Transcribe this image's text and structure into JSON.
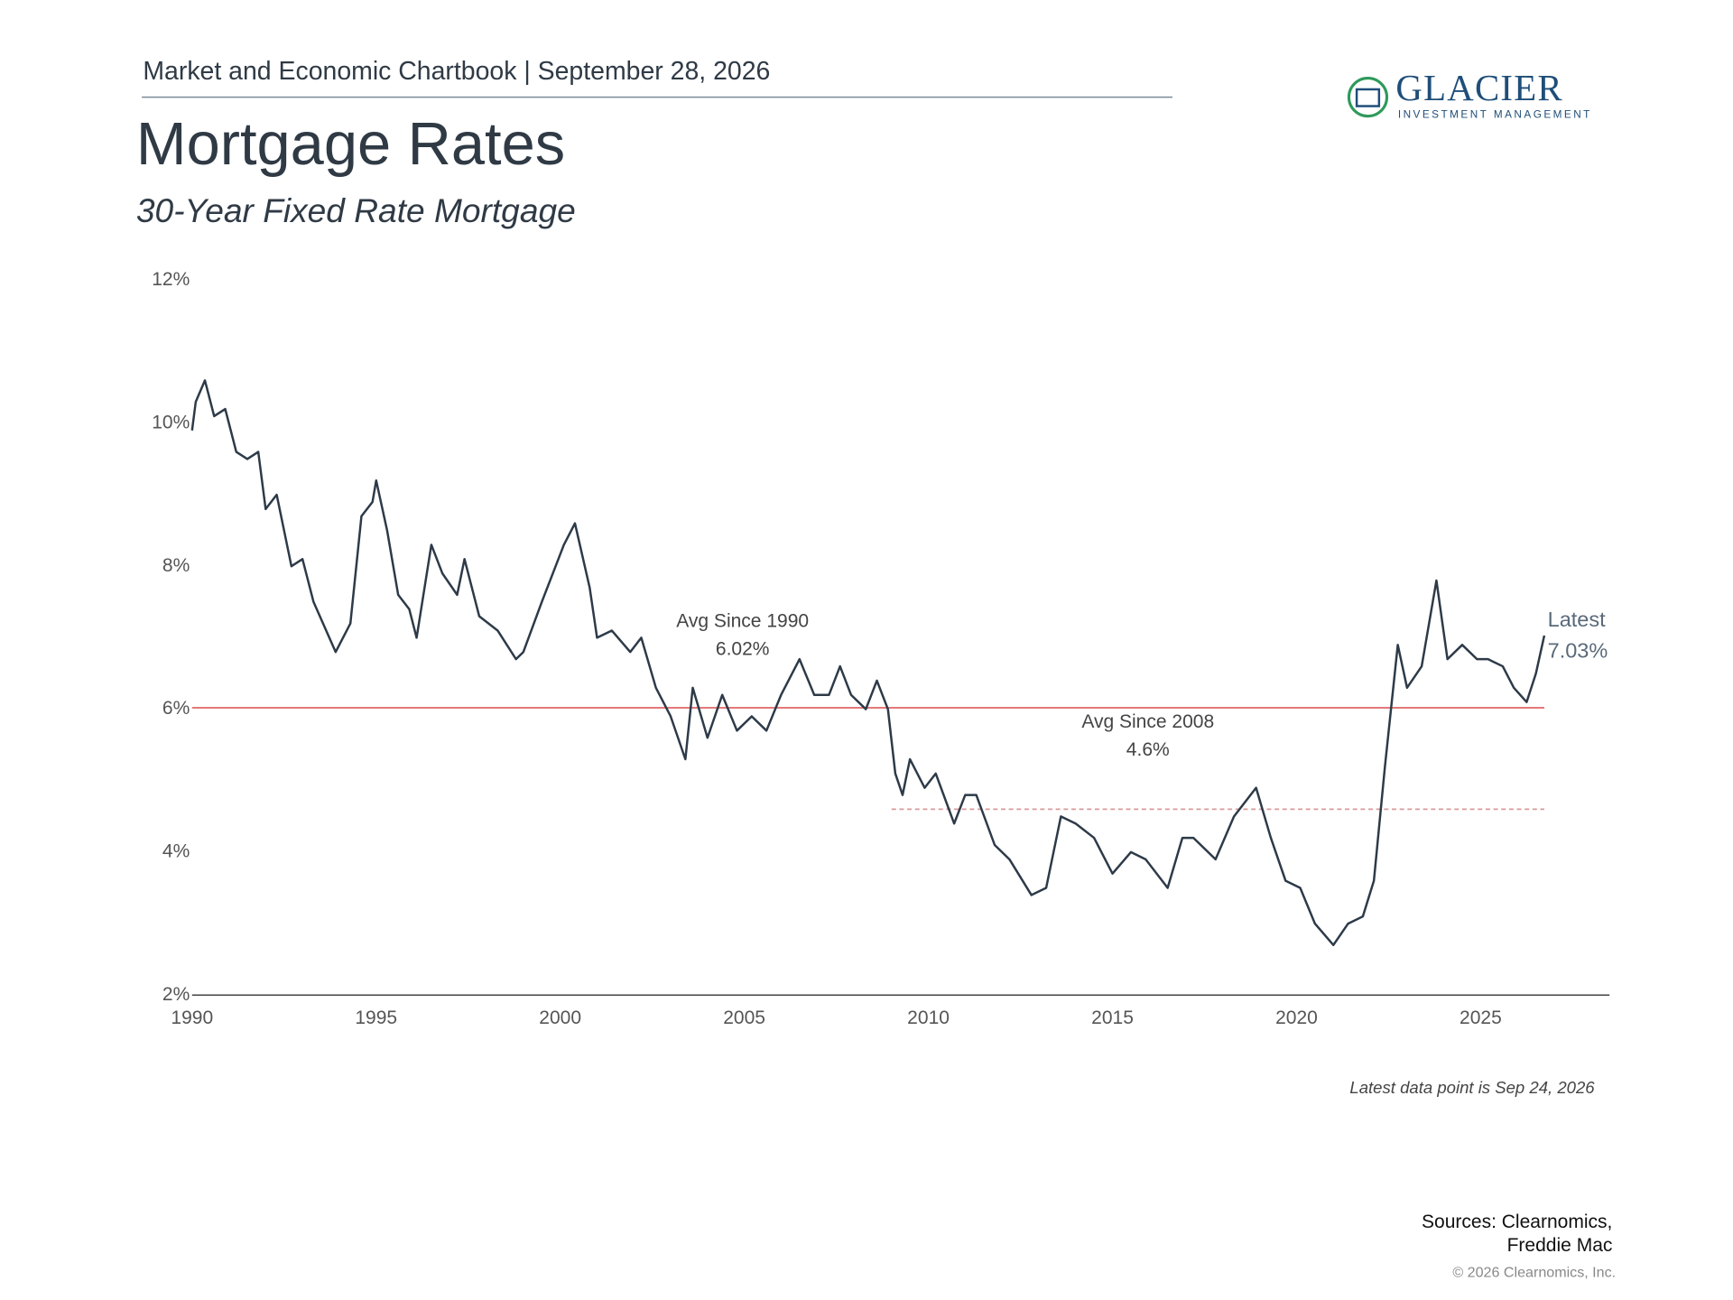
{
  "header": "Market and Economic Chartbook | September 28, 2026",
  "logo": {
    "name": "GLACIER",
    "tagline": "INVESTMENT MANAGEMENT"
  },
  "chart_data": {
    "type": "line",
    "title": "Mortgage Rates",
    "subtitle": "30-Year Fixed Rate Mortgage",
    "x": [
      1990.0,
      1990.1,
      1990.35,
      1990.6,
      1990.9,
      1991.2,
      1991.5,
      1991.8,
      1992.0,
      1992.3,
      1992.7,
      1993.0,
      1993.3,
      1993.9,
      1994.3,
      1994.6,
      1994.9,
      1995.0,
      1995.3,
      1995.6,
      1995.9,
      1996.1,
      1996.5,
      1996.8,
      1997.2,
      1997.4,
      1997.8,
      1998.3,
      1998.8,
      1999.0,
      1999.5,
      1999.8,
      2000.1,
      2000.4,
      2000.8,
      2001.0,
      2001.4,
      2001.9,
      2002.2,
      2002.6,
      2003.0,
      2003.4,
      2003.6,
      2004.0,
      2004.4,
      2004.8,
      2005.2,
      2005.6,
      2006.0,
      2006.5,
      2006.9,
      2007.3,
      2007.6,
      2007.9,
      2008.3,
      2008.6,
      2008.9,
      2009.1,
      2009.3,
      2009.5,
      2009.9,
      2010.2,
      2010.7,
      2011.0,
      2011.3,
      2011.8,
      2012.2,
      2012.8,
      2013.2,
      2013.6,
      2014.0,
      2014.5,
      2015.0,
      2015.5,
      2015.9,
      2016.5,
      2016.9,
      2017.2,
      2017.8,
      2018.3,
      2018.9,
      2019.3,
      2019.7,
      2020.1,
      2020.5,
      2021.0,
      2021.4,
      2021.8,
      2022.1,
      2022.4,
      2022.75,
      2023.0,
      2023.4,
      2023.8,
      2024.1,
      2024.5,
      2024.9,
      2025.2,
      2025.6,
      2025.9,
      2026.25,
      2026.5,
      2026.73
    ],
    "series": [
      {
        "name": "30-Year Fixed Rate Mortgage",
        "color": "#2d3a48",
        "values": [
          9.9,
          10.3,
          10.6,
          10.1,
          10.2,
          9.6,
          9.5,
          9.6,
          8.8,
          9.0,
          8.0,
          8.1,
          7.5,
          6.8,
          7.2,
          8.7,
          8.9,
          9.2,
          8.5,
          7.6,
          7.4,
          7.0,
          8.3,
          7.9,
          7.6,
          8.1,
          7.3,
          7.1,
          6.7,
          6.8,
          7.5,
          7.9,
          8.3,
          8.6,
          7.7,
          7.0,
          7.1,
          6.8,
          7.0,
          6.3,
          5.9,
          5.3,
          6.3,
          5.6,
          6.2,
          5.7,
          5.9,
          5.7,
          6.2,
          6.7,
          6.2,
          6.2,
          6.6,
          6.2,
          6.0,
          6.4,
          6.0,
          5.1,
          4.8,
          5.3,
          4.9,
          5.1,
          4.4,
          4.8,
          4.8,
          4.1,
          3.9,
          3.4,
          3.5,
          4.5,
          4.4,
          4.2,
          3.7,
          4.0,
          3.9,
          3.5,
          4.2,
          4.2,
          3.9,
          4.5,
          4.9,
          4.2,
          3.6,
          3.5,
          3.0,
          2.7,
          3.0,
          3.1,
          3.6,
          5.2,
          6.9,
          6.3,
          6.6,
          7.8,
          6.7,
          6.9,
          6.7,
          6.7,
          6.6,
          6.3,
          6.1,
          6.5,
          7.03
        ]
      }
    ],
    "latest_label": "Latest",
    "latest_value_label": "7.03%",
    "reference_lines": [
      {
        "name": "Avg Since 1990",
        "value": 6.02,
        "value_label": "6.02%",
        "start": 1990,
        "color": "#e06666",
        "style": "solid"
      },
      {
        "name": "Avg Since 2008",
        "value": 4.6,
        "value_label": "4.6%",
        "start": 2009,
        "color": "#d99a9a",
        "style": "dashed"
      }
    ],
    "xlim": [
      1990,
      2028.5
    ],
    "xticks": [
      1990,
      1995,
      2000,
      2005,
      2010,
      2015,
      2020,
      2025
    ],
    "ylim": [
      2,
      12
    ],
    "yticks": [
      {
        "value": 2,
        "label": "2%"
      },
      {
        "value": 4,
        "label": "4%"
      },
      {
        "value": 6,
        "label": "6%"
      },
      {
        "value": 8,
        "label": "8%"
      },
      {
        "value": 10,
        "label": "10%"
      },
      {
        "value": 12,
        "label": "12%"
      }
    ],
    "grid": false,
    "note": "Latest data point is Sep 24, 2026"
  },
  "sources": [
    "Sources: Clearnomics,",
    "Freddie Mac"
  ],
  "copyright": "© 2026 Clearnomics, Inc."
}
